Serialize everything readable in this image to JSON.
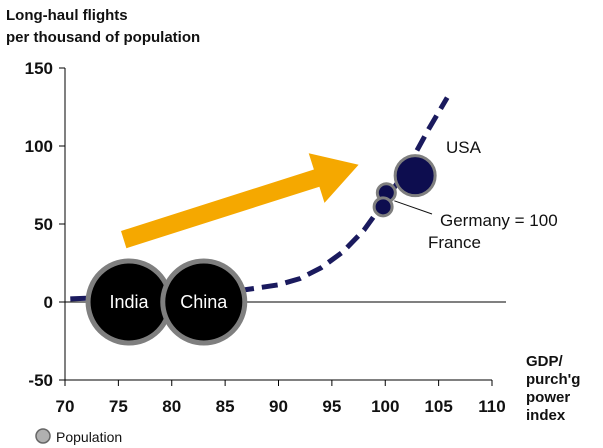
{
  "chart_data": {
    "type": "line",
    "ylabel_lines": [
      "Long-haul flights",
      "per thousand of population"
    ],
    "xlabel_lines": [
      "GDP/",
      "purch'g",
      "power",
      "index"
    ],
    "xlim": [
      70,
      110
    ],
    "ylim": [
      -50,
      150
    ],
    "x_ticks": [
      70,
      75,
      80,
      85,
      90,
      95,
      100,
      105,
      110
    ],
    "y_ticks": [
      -50,
      0,
      50,
      100,
      150
    ],
    "zero_line": true,
    "series": [
      {
        "style": "dashed",
        "color": "#1a1a5e",
        "points": [
          [
            70.5,
            2
          ],
          [
            74,
            3
          ],
          [
            78,
            4
          ],
          [
            82,
            5
          ],
          [
            86,
            7
          ],
          [
            88,
            9
          ],
          [
            90,
            11
          ],
          [
            92,
            15
          ],
          [
            94,
            22
          ],
          [
            96,
            32
          ],
          [
            98,
            46
          ],
          [
            100,
            65
          ],
          [
            102,
            85
          ],
          [
            104,
            110
          ],
          [
            105.8,
            131
          ]
        ]
      }
    ],
    "bubbles": [
      {
        "label": "India",
        "x": 76,
        "y": 0,
        "size": "large",
        "fill": "#000000",
        "stroke": "#7f7f7f"
      },
      {
        "label": "China",
        "x": 83,
        "y": 0,
        "size": "large",
        "fill": "#000000",
        "stroke": "#7f7f7f"
      },
      {
        "label": "USA",
        "x": 102.8,
        "y": 81,
        "size": "medium",
        "fill": "#0d0d4f",
        "stroke": "#7f7f7f"
      },
      {
        "label": "Germany = 100",
        "x": 100.1,
        "y": 70,
        "size": "small",
        "fill": "#0d0d4f",
        "stroke": "#7f7f7f"
      },
      {
        "label": "France",
        "x": 99.8,
        "y": 61,
        "size": "small",
        "fill": "#0d0d4f",
        "stroke": "#7f7f7f"
      }
    ],
    "arrow": {
      "from": [
        75.5,
        40
      ],
      "to": [
        97.5,
        88
      ],
      "color": "#f5a800"
    },
    "legend": {
      "label": "Population",
      "position": "bottom-left"
    }
  }
}
